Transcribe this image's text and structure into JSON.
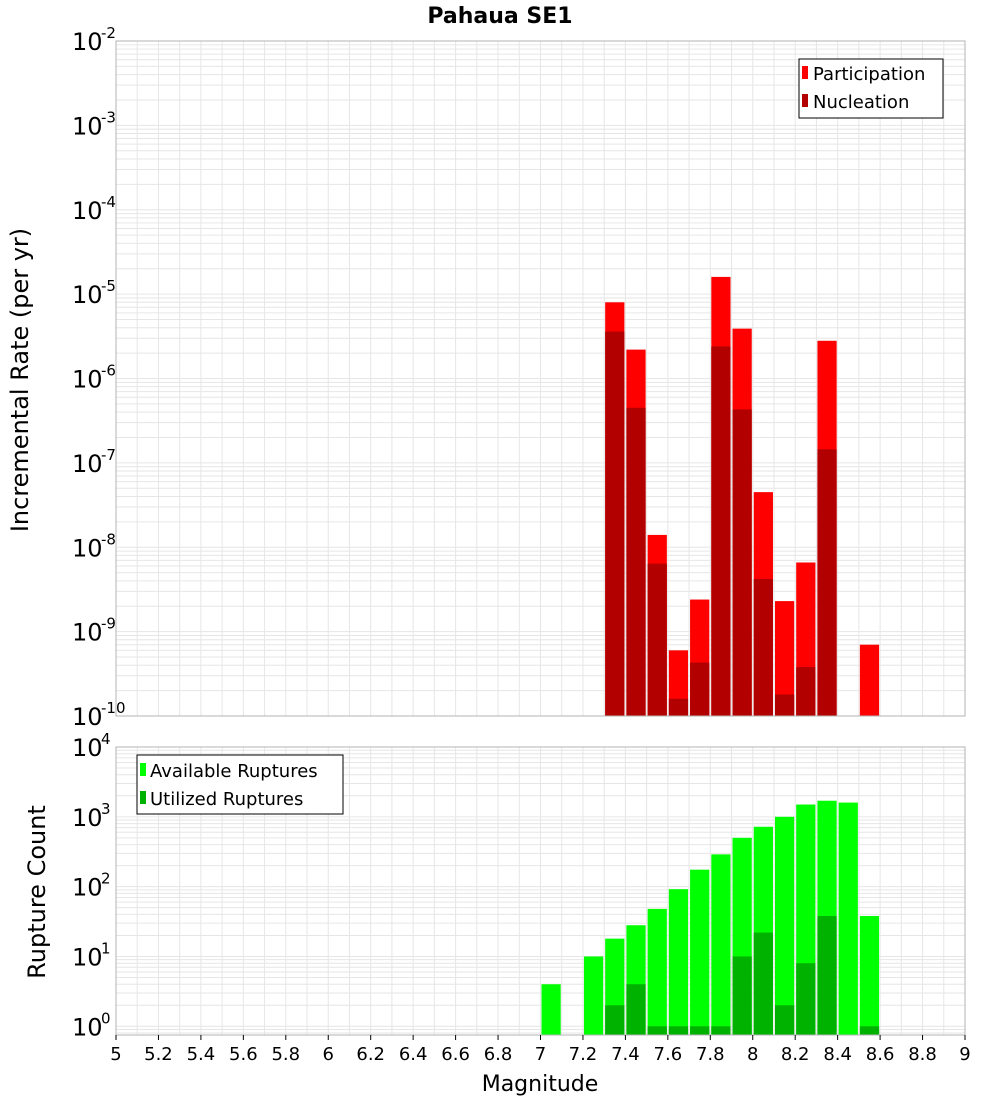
{
  "title": "Pahaua SE1",
  "xlabel": "Magnitude",
  "x_ticks": [
    "5",
    "5.2",
    "5.4",
    "5.6",
    "5.8",
    "6",
    "6.2",
    "6.4",
    "6.6",
    "6.8",
    "7",
    "7.2",
    "7.4",
    "7.6",
    "7.8",
    "8",
    "8.2",
    "8.4",
    "8.6",
    "8.8",
    "9"
  ],
  "colors": {
    "participation": "#ff0000",
    "nucleation": "#b20000",
    "available": "#00ff00",
    "utilized": "#00b200",
    "grid": "#e6e6e6",
    "frame": "#b3b3b3"
  },
  "chart_data": [
    {
      "type": "bar",
      "ylabel": "Incremental Rate (per yr)",
      "yscale": "log",
      "xlim": [
        5,
        9
      ],
      "ylim": [
        1e-10,
        0.01
      ],
      "y_tick_exponents": [
        "-2",
        "-3",
        "-4",
        "-5",
        "-6",
        "-7",
        "-8",
        "-9",
        "-10"
      ],
      "legend_position": "top-right",
      "x": [
        7.35,
        7.45,
        7.55,
        7.65,
        7.75,
        7.85,
        7.95,
        8.05,
        8.15,
        8.25,
        8.35,
        8.55
      ],
      "series": [
        {
          "name": "Participation",
          "values": [
            8e-06,
            2.2e-06,
            1.4e-08,
            6e-10,
            2.4e-09,
            1.6e-05,
            3.9e-06,
            4.5e-08,
            2.3e-09,
            6.6e-09,
            2.8e-06,
            7e-10
          ]
        },
        {
          "name": "Nucleation",
          "values": [
            3.6e-06,
            4.5e-07,
            6.4e-09,
            1.6e-10,
            4.3e-10,
            2.4e-06,
            4.3e-07,
            4.2e-09,
            1.8e-10,
            3.8e-10,
            1.45e-07,
            null
          ]
        }
      ]
    },
    {
      "type": "bar",
      "ylabel": "Rupture Count",
      "yscale": "log",
      "xlim": [
        5,
        9
      ],
      "ylim": [
        0.75,
        10000
      ],
      "y_tick_exponents": [
        "4",
        "3",
        "2",
        "1",
        "0"
      ],
      "legend_position": "top-left",
      "x": [
        7.05,
        7.25,
        7.35,
        7.45,
        7.55,
        7.65,
        7.75,
        7.85,
        7.95,
        8.05,
        8.15,
        8.25,
        8.35,
        8.45,
        8.55
      ],
      "series": [
        {
          "name": "Available Ruptures",
          "values": [
            4,
            10,
            18,
            28,
            48,
            92,
            175,
            290,
            500,
            720,
            1000,
            1500,
            1700,
            1600,
            38
          ]
        },
        {
          "name": "Utilized Ruptures",
          "values": [
            null,
            null,
            2,
            4,
            1,
            1,
            1,
            1,
            10,
            22,
            2,
            8,
            38,
            null,
            1
          ]
        }
      ]
    }
  ]
}
